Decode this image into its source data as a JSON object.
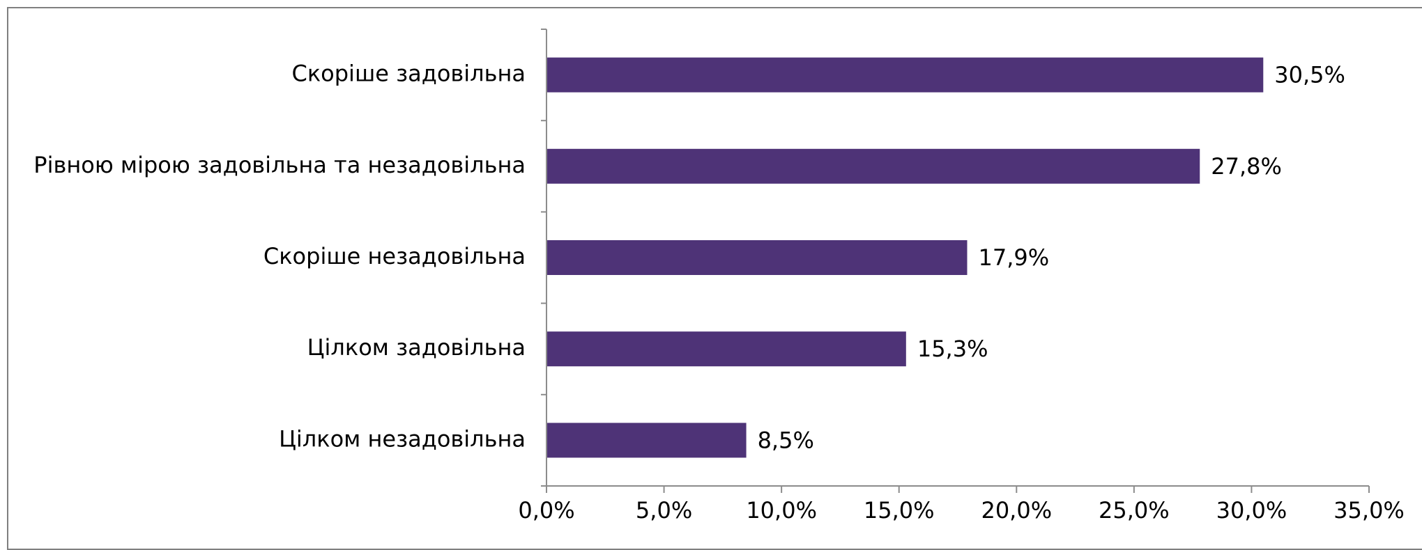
{
  "chart_data": {
    "type": "bar",
    "orientation": "horizontal",
    "categories": [
      "Скоріше задовільна",
      "Рівною мірою задовільна та незадовільна",
      "Скоріше незадовільна",
      "Цілком задовільна",
      "Цілком незадовільна"
    ],
    "values": [
      30.5,
      27.8,
      17.9,
      15.3,
      8.5
    ],
    "data_labels": [
      "30,5%",
      "27,8%",
      "17,9%",
      "15,3%",
      "8,5%"
    ],
    "xlim": [
      0,
      35
    ],
    "x_ticks": [
      0,
      5,
      10,
      15,
      20,
      25,
      30,
      35
    ],
    "x_tick_labels": [
      "0,0%",
      "5,0%",
      "10,0%",
      "15,0%",
      "20,0%",
      "25,0%",
      "30,0%",
      "35,0%"
    ],
    "grid": false,
    "legend": "none",
    "bar_color": "#4e3377"
  }
}
